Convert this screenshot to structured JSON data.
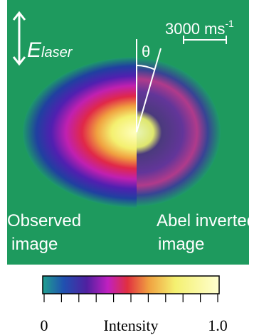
{
  "panel": {
    "field_symbol": "E",
    "field_subscript": "laser",
    "scale_bar": "3000 ms",
    "scale_bar_exponent": "-1",
    "angle": "θ",
    "left_label": [
      "Observed",
      "image"
    ],
    "right_label": [
      "Abel inverted",
      "image"
    ]
  },
  "colorbar": {
    "label": "Intensity",
    "lim": [
      0,
      1
    ],
    "ticks": [
      0,
      {
        "value": 1,
        "label": "1.0"
      }
    ],
    "minor_ticks": [
      0.1,
      0.2,
      0.3,
      0.4,
      0.5,
      0.6,
      0.7,
      0.8,
      0.9
    ]
  }
}
